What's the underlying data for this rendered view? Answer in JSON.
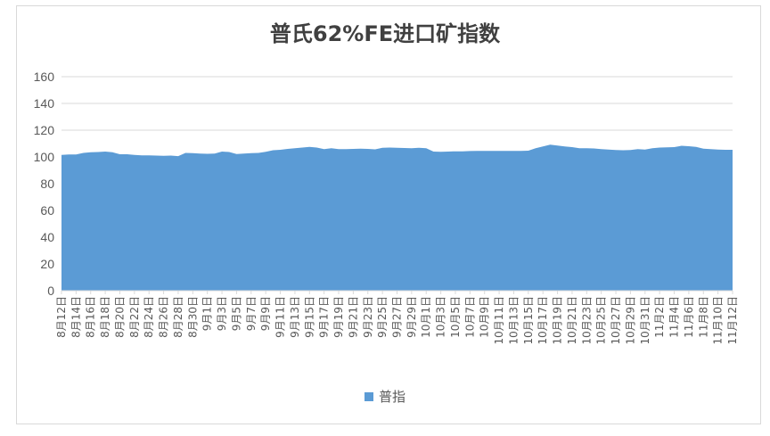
{
  "colors": {
    "area": "#5b9bd5",
    "grid": "#d9d9d9",
    "text": "#595959",
    "title": "#404040"
  },
  "chart_data": {
    "type": "area",
    "title": "普氏62%FE进口矿指数",
    "xlabel": "",
    "ylabel": "",
    "ylim": [
      0,
      160
    ],
    "yticks": [
      0,
      20,
      40,
      60,
      80,
      100,
      120,
      140,
      160
    ],
    "grid": true,
    "legend_position": "bottom",
    "x": [
      "8月12日",
      "8月13日",
      "8月14日",
      "8月15日",
      "8月16日",
      "8月17日",
      "8月18日",
      "8月19日",
      "8月20日",
      "8月21日",
      "8月22日",
      "8月23日",
      "8月24日",
      "8月25日",
      "8月26日",
      "8月27日",
      "8月28日",
      "8月29日",
      "8月30日",
      "8月31日",
      "9月1日",
      "9月2日",
      "9月3日",
      "9月4日",
      "9月5日",
      "9月6日",
      "9月7日",
      "9月8日",
      "9月9日",
      "9月10日",
      "9月11日",
      "9月12日",
      "9月13日",
      "9月14日",
      "9月15日",
      "9月16日",
      "9月17日",
      "9月18日",
      "9月19日",
      "9月20日",
      "9月21日",
      "9月22日",
      "9月23日",
      "9月24日",
      "9月25日",
      "9月26日",
      "9月27日",
      "9月28日",
      "9月29日",
      "9月30日",
      "10月1日",
      "10月2日",
      "10月3日",
      "10月4日",
      "10月5日",
      "10月6日",
      "10月7日",
      "10月8日",
      "10月9日",
      "10月10日",
      "10月11日",
      "10月12日",
      "10月13日",
      "10月14日",
      "10月15日",
      "10月16日",
      "10月17日",
      "10月18日",
      "10月19日",
      "10月20日",
      "10月21日",
      "10月22日",
      "10月23日",
      "10月24日",
      "10月25日",
      "10月26日",
      "10月27日",
      "10月28日",
      "10月29日",
      "10月30日",
      "10月31日",
      "11月1日",
      "11月2日",
      "11月3日",
      "11月4日",
      "11月5日",
      "11月6日",
      "11月7日",
      "11月8日",
      "11月9日",
      "11月10日",
      "11月11日",
      "11月12日"
    ],
    "series": [
      {
        "name": "普指",
        "values": [
          101.5,
          101.8,
          101.8,
          103.0,
          103.5,
          103.7,
          104.0,
          103.5,
          102.0,
          102.0,
          101.5,
          101.2,
          101.2,
          101.0,
          100.8,
          101.0,
          100.6,
          103.0,
          102.8,
          102.5,
          102.3,
          102.5,
          104.0,
          103.7,
          102.2,
          102.5,
          102.8,
          103.0,
          103.8,
          105.0,
          105.3,
          106.0,
          106.5,
          107.0,
          107.5,
          107.0,
          105.8,
          106.5,
          105.8,
          105.8,
          106.0,
          106.2,
          106.0,
          105.7,
          106.8,
          107.0,
          106.8,
          106.7,
          106.5,
          106.8,
          106.5,
          104.0,
          103.8,
          104.0,
          104.2,
          104.2,
          104.4,
          104.5,
          104.5,
          104.5,
          104.5,
          104.5,
          104.5,
          104.5,
          104.7,
          106.5,
          107.8,
          109.2,
          108.5,
          107.8,
          107.3,
          106.5,
          106.5,
          106.3,
          105.8,
          105.5,
          105.2,
          105.0,
          105.2,
          105.8,
          105.5,
          106.5,
          107.0,
          107.2,
          107.3,
          108.3,
          108.0,
          107.5,
          106.2,
          105.8,
          105.5,
          105.3,
          105.3
        ]
      }
    ],
    "legend": [
      "普指"
    ]
  }
}
